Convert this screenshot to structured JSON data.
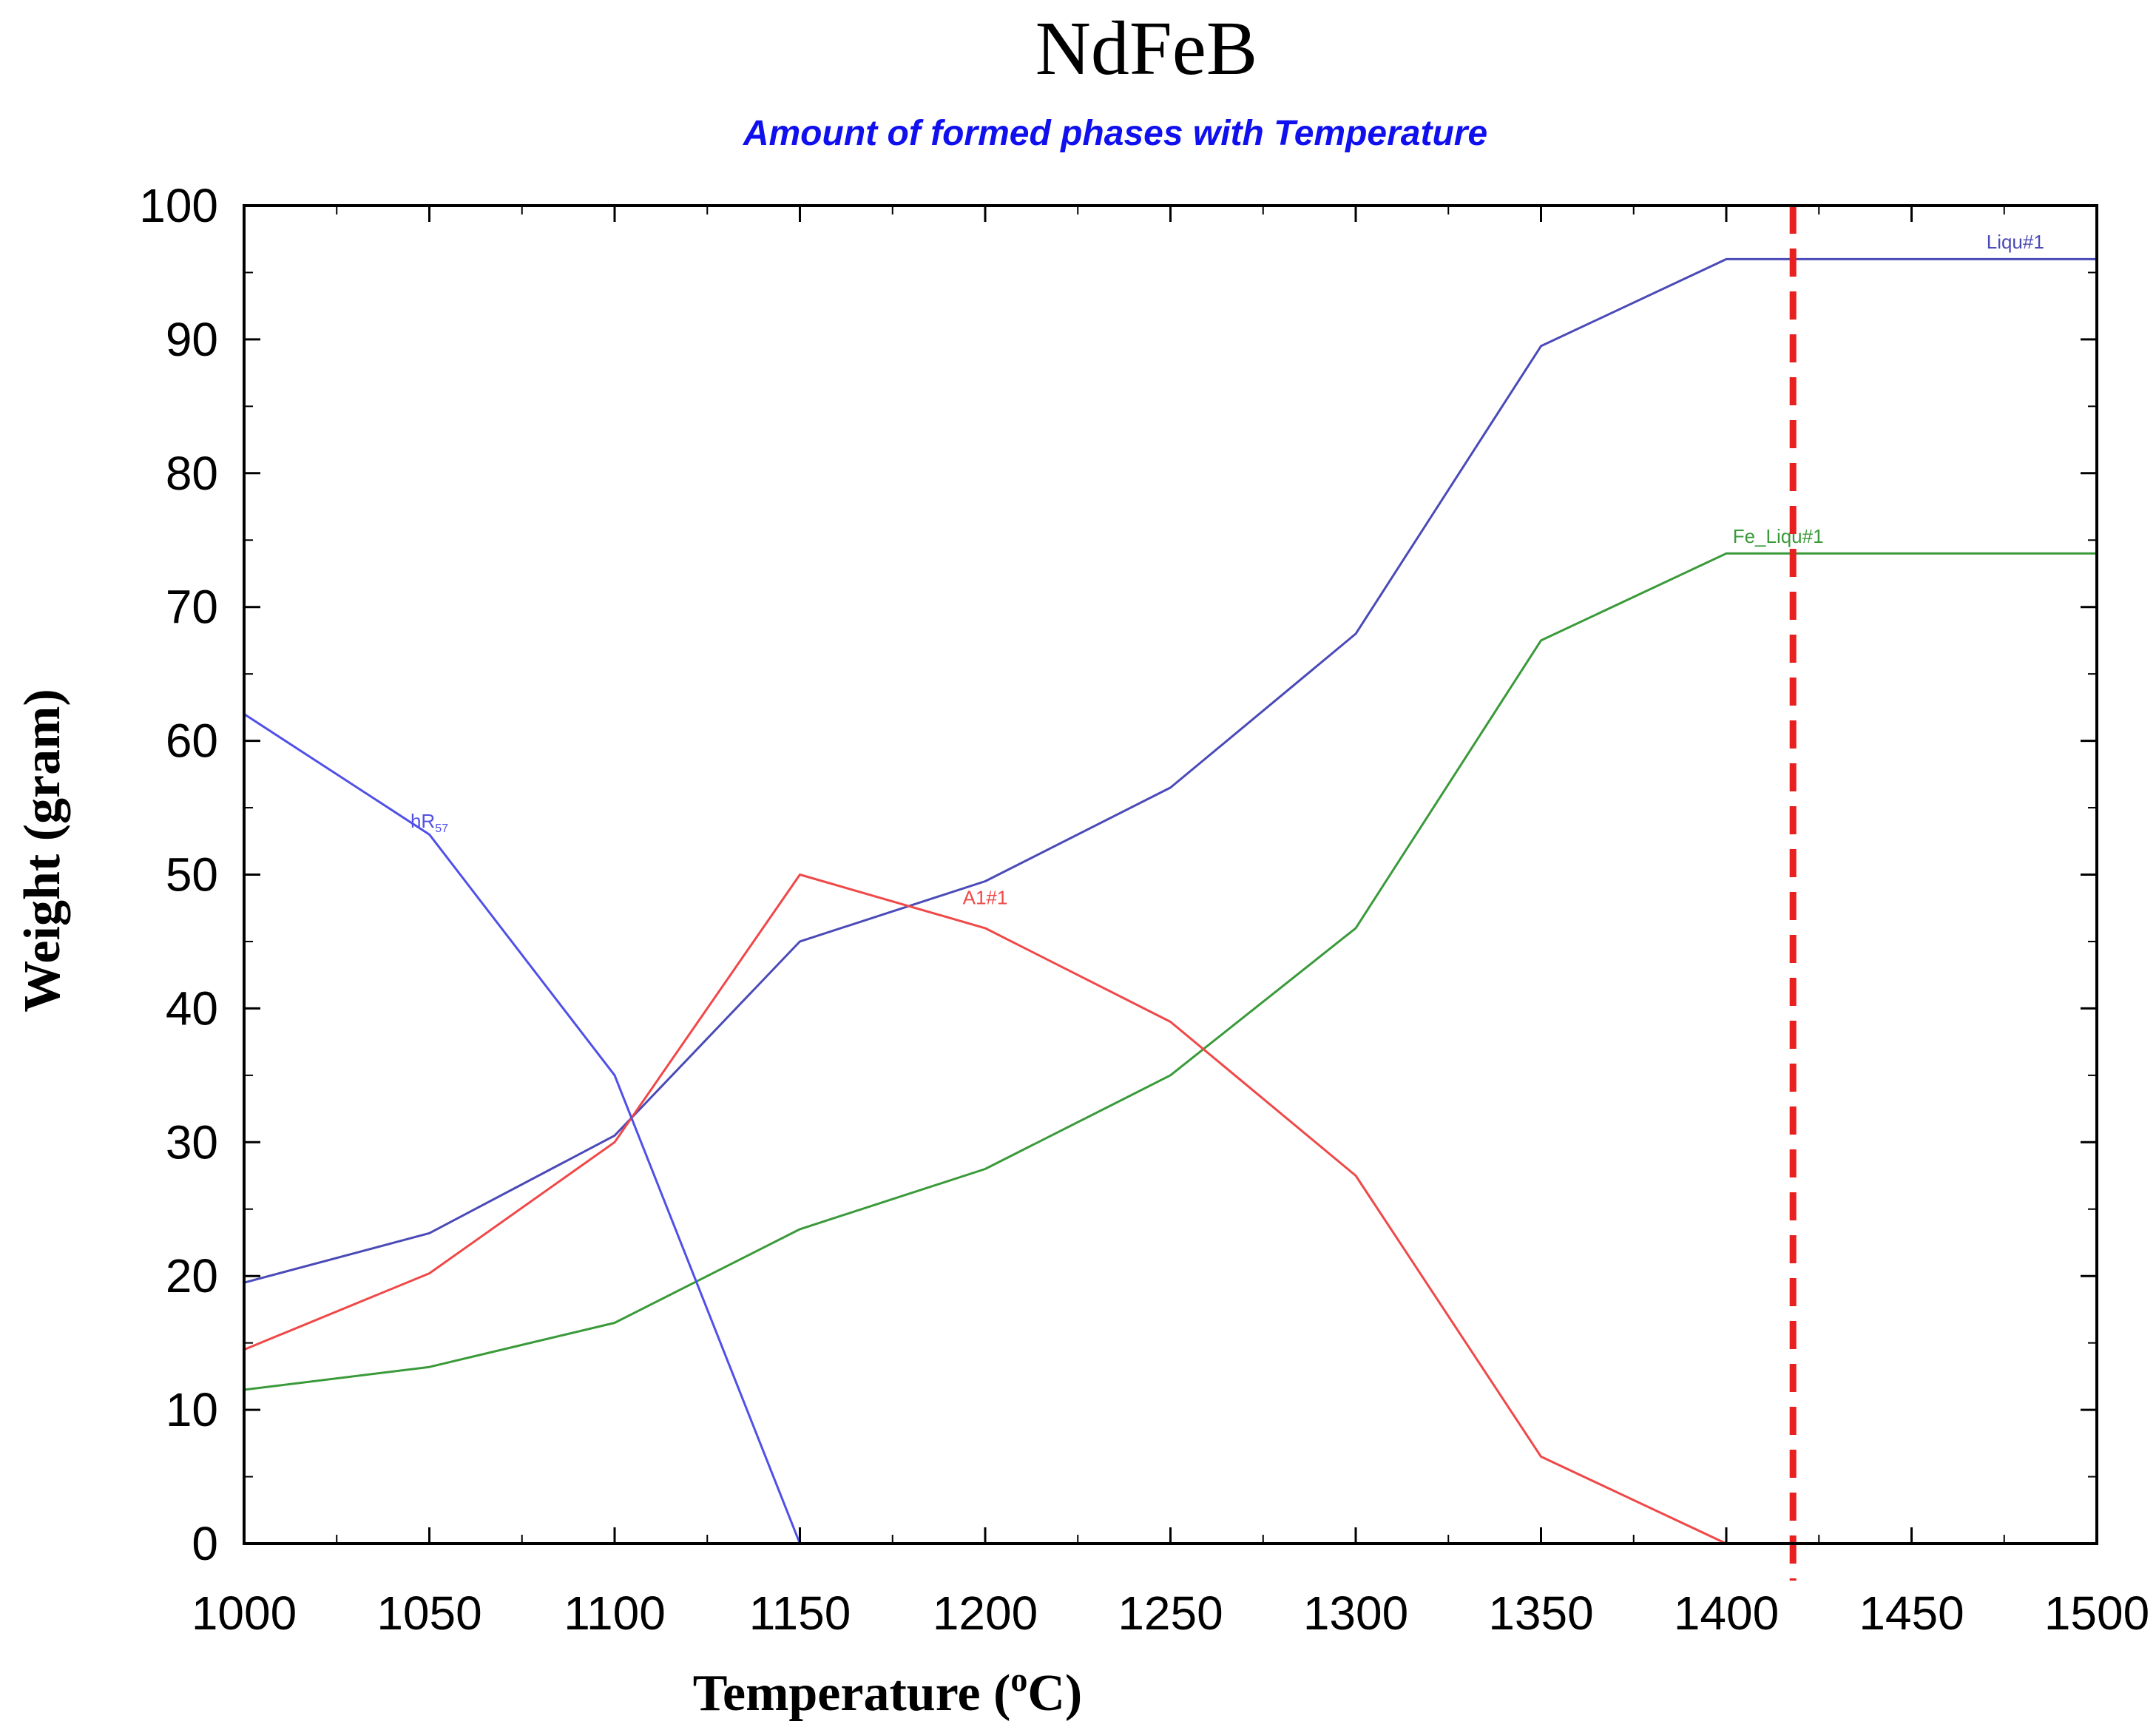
{
  "chart_data": {
    "type": "line",
    "title": "NdFeB",
    "subtitle": "Amount of formed phases with Temperature",
    "xlabel": "Temperature (",
    "xlabel_sup": "o",
    "xlabel_unit": "C)",
    "ylabel": "Weight (gram)",
    "xlim": [
      1000,
      1500
    ],
    "ylim": [
      0,
      100
    ],
    "xticks": [
      1000,
      1050,
      1100,
      1150,
      1200,
      1250,
      1300,
      1350,
      1400,
      1450,
      1500
    ],
    "yticks": [
      0,
      10,
      20,
      30,
      40,
      50,
      60,
      70,
      80,
      90,
      100
    ],
    "grid": false,
    "reference_line": {
      "x": 1418,
      "color": "#e82020",
      "style": "dashed"
    },
    "series": [
      {
        "name": "Liqu#1",
        "color": "#4a4ab8",
        "x": [
          1000,
          1050,
          1100,
          1150,
          1200,
          1250,
          1300,
          1350,
          1400,
          1500
        ],
        "y": [
          19.5,
          23.2,
          30.5,
          45,
          49.5,
          56.5,
          68,
          89.5,
          96,
          96
        ]
      },
      {
        "name": "Fe_Liqu#1",
        "color": "#3a9a3a",
        "x": [
          1000,
          1050,
          1100,
          1150,
          1200,
          1250,
          1300,
          1350,
          1400,
          1500
        ],
        "y": [
          11.5,
          13.2,
          16.5,
          23.5,
          28,
          35,
          46,
          67.5,
          74,
          74
        ]
      },
      {
        "name": "A1#1",
        "color": "#f04848",
        "x": [
          1000,
          1050,
          1100,
          1150,
          1200,
          1250,
          1300,
          1350,
          1400
        ],
        "y": [
          14.5,
          20.2,
          30,
          50,
          46,
          39,
          27.5,
          6.5,
          0
        ]
      },
      {
        "name": "hR",
        "name_sub": "57",
        "color": "#5050e8",
        "x": [
          1000,
          1050,
          1100,
          1150
        ],
        "y": [
          62,
          53,
          35,
          0
        ]
      }
    ]
  }
}
